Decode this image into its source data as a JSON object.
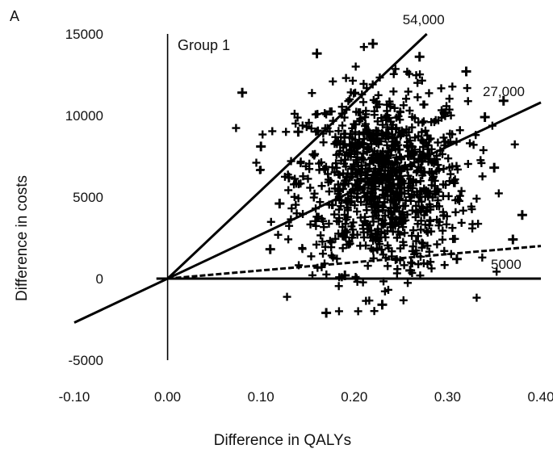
{
  "chart_data": {
    "type": "scatter",
    "panel_label": "A",
    "annotation": "Group 1",
    "xlabel": "Difference in QALYs",
    "ylabel": "Difference in costs",
    "xlim": [
      -0.1,
      0.4
    ],
    "ylim": [
      -5000,
      15000
    ],
    "x_ticks": [
      -0.1,
      0.0,
      0.1,
      0.2,
      0.3,
      0.4
    ],
    "x_tick_labels": [
      "-0.10",
      "0.00",
      "0.10",
      "0.20",
      "0.30",
      "0.40"
    ],
    "y_ticks": [
      -5000,
      0,
      5000,
      10000,
      15000
    ],
    "y_tick_labels": [
      "-5000",
      "0",
      "5000",
      "10000",
      "15000"
    ],
    "grid": false,
    "marker": "plus",
    "threshold_lines": [
      {
        "label": "54,000",
        "slope": 54000
      },
      {
        "label": "27,000",
        "slope": 27000
      },
      {
        "label": "5000",
        "slope": 5000
      }
    ],
    "distribution": {
      "x_mean": 0.23,
      "x_sd": 0.045,
      "y_mean": 6000,
      "y_sd": 2800,
      "n": 1000
    },
    "points": [
      {
        "x": 0.08,
        "y": 11400
      },
      {
        "x": 0.1,
        "y": 8100
      },
      {
        "x": 0.16,
        "y": 13800
      },
      {
        "x": 0.22,
        "y": 14400
      },
      {
        "x": 0.32,
        "y": 12700
      },
      {
        "x": 0.36,
        "y": 10900
      },
      {
        "x": 0.17,
        "y": -2100
      },
      {
        "x": 0.23,
        "y": -1600
      },
      {
        "x": 0.37,
        "y": 2400
      },
      {
        "x": 0.38,
        "y": 3900
      },
      {
        "x": 0.12,
        "y": 4600
      },
      {
        "x": 0.11,
        "y": 1800
      },
      {
        "x": 0.14,
        "y": 9000
      },
      {
        "x": 0.27,
        "y": 13600
      },
      {
        "x": 0.35,
        "y": 6800
      },
      {
        "x": 0.26,
        "y": 500
      },
      {
        "x": 0.19,
        "y": 200
      },
      {
        "x": 0.31,
        "y": 1200
      },
      {
        "x": 0.13,
        "y": 6200
      },
      {
        "x": 0.34,
        "y": 9900
      }
    ]
  }
}
